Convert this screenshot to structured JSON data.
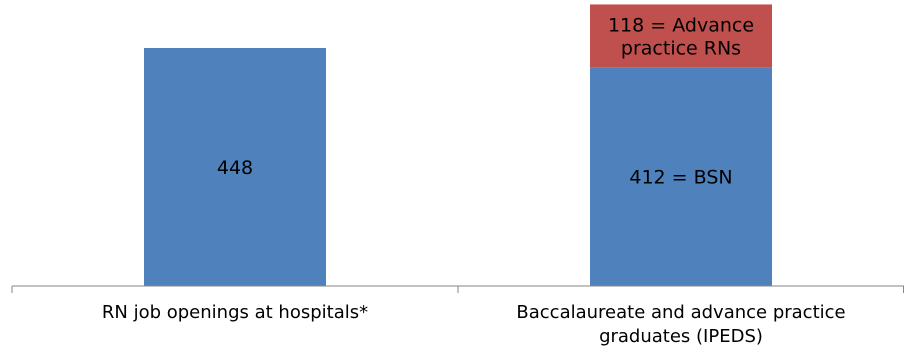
{
  "chart_data": {
    "type": "bar",
    "stacked": true,
    "categories": [
      "RN job openings at hospitals*",
      "Baccalaureate and advance practice graduates (IPEDS)"
    ],
    "series": [
      {
        "values": [
          448,
          412
        ],
        "color": "#4F81BD"
      },
      {
        "values": [
          0,
          118
        ],
        "color": "#C0504D"
      }
    ],
    "data_labels": [
      [
        "448",
        "412 = BSN"
      ],
      [
        null,
        "118 = Advance practice RNs"
      ]
    ],
    "ylim": [
      0,
      600
    ],
    "grid": false,
    "legend": "none",
    "title": "",
    "xlabel": "",
    "ylabel": ""
  }
}
